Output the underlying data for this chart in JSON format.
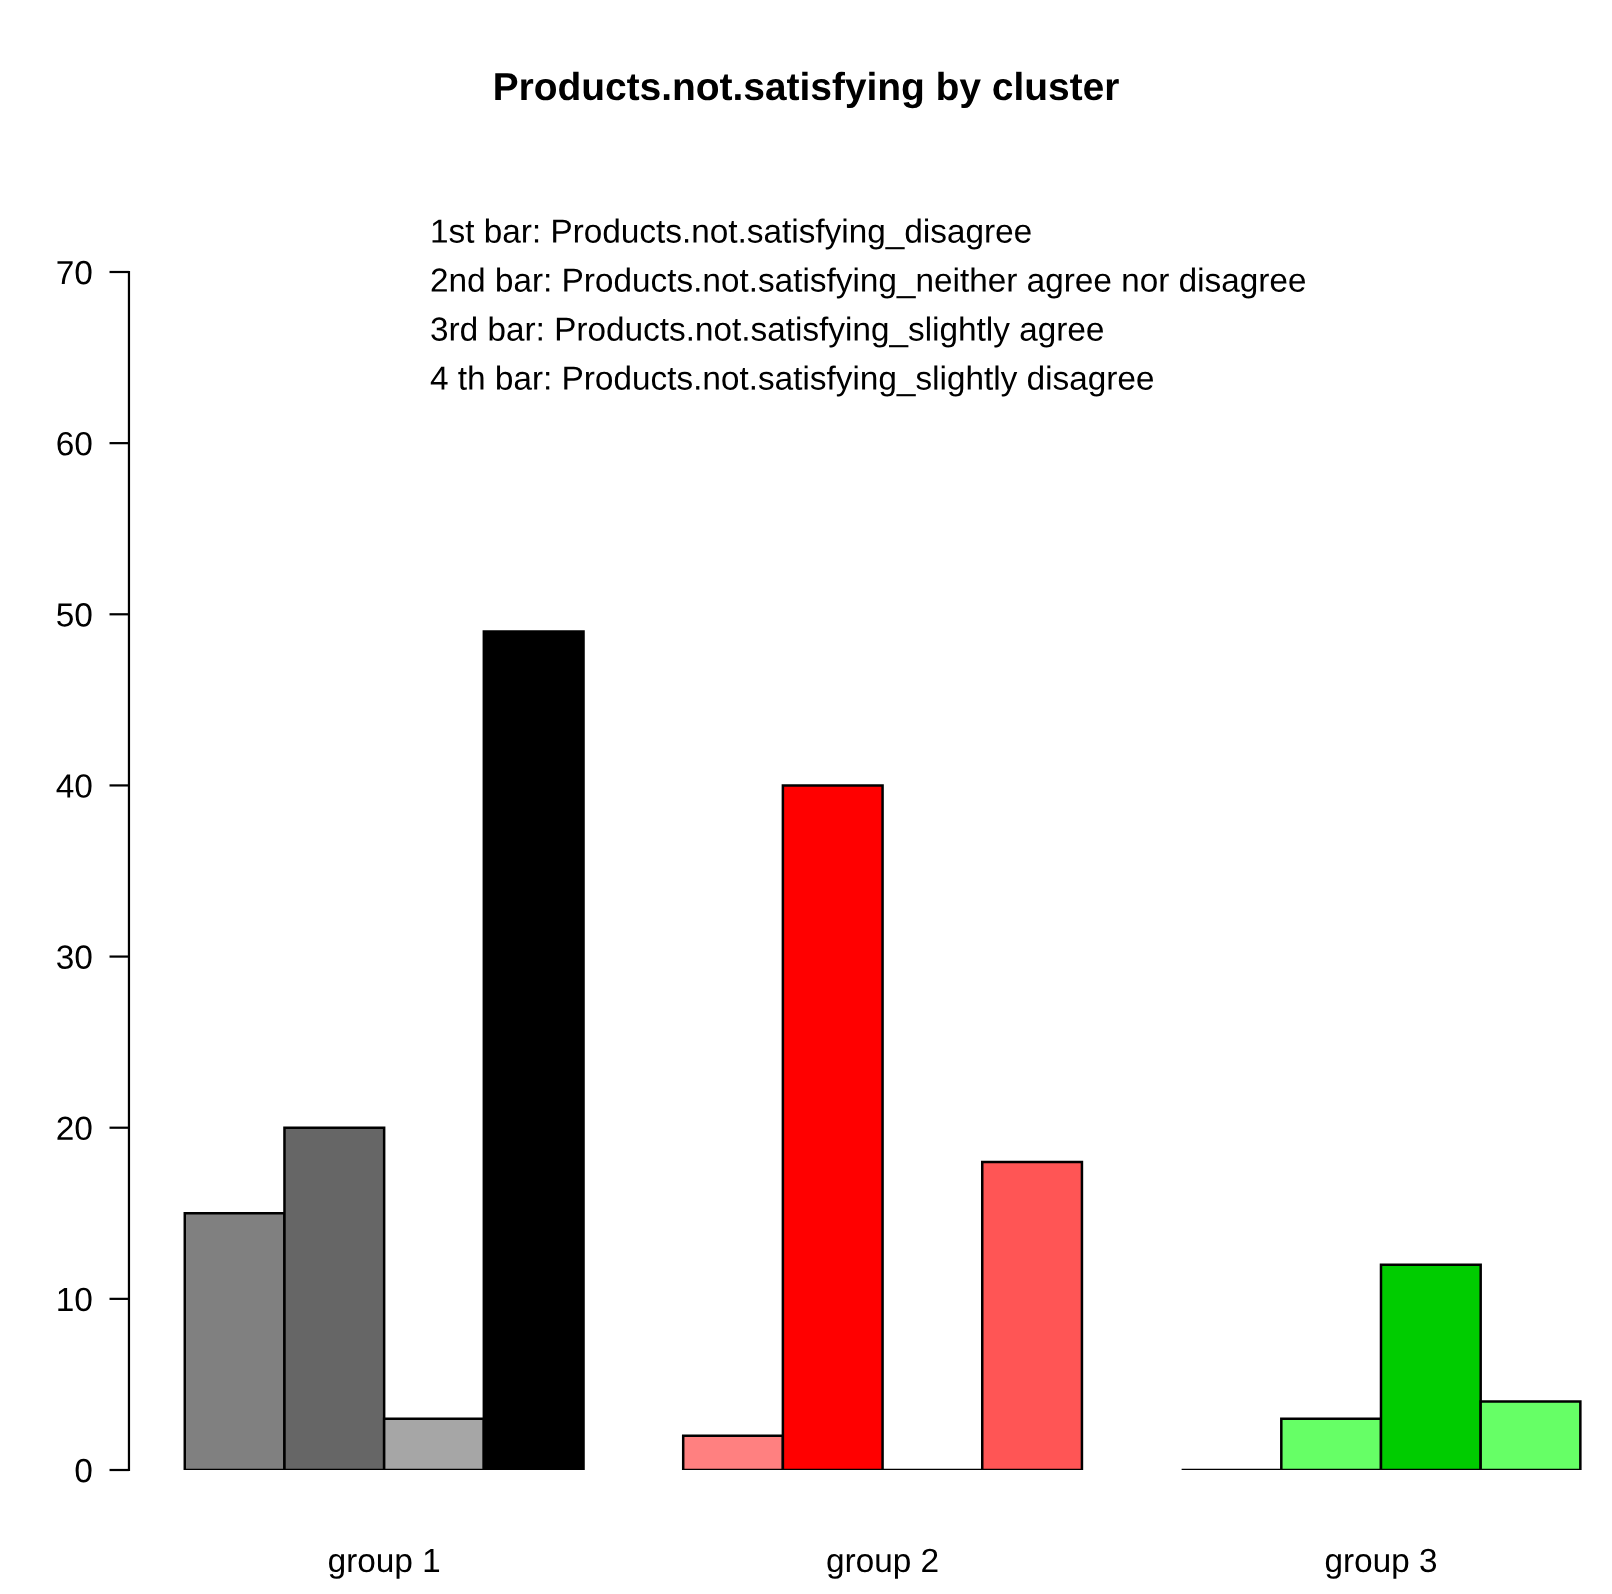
{
  "chart_data": {
    "type": "bar",
    "title": "Products.not.satisfying by cluster",
    "categories": [
      "group 1",
      "group 2",
      "group 3"
    ],
    "series": [
      {
        "colors": [
          "#808080",
          "#ff8080",
          "#000000"
        ],
        "values": [
          15,
          2,
          0
        ]
      },
      {
        "colors": [
          "#666666",
          "#ff0000",
          "#66ff66"
        ],
        "values": [
          20,
          40,
          3
        ]
      },
      {
        "colors": [
          "#a6a6a6",
          "#000000",
          "#00cc00"
        ],
        "values": [
          3,
          0,
          12
        ]
      },
      {
        "colors": [
          "#000000",
          "#ff5555",
          "#66ff66"
        ],
        "values": [
          49,
          18,
          4
        ]
      }
    ],
    "annotations": [
      "1st bar: Products.not.satisfying_disagree",
      "2nd bar: Products.not.satisfying_neither agree nor disagree",
      "3rd bar: Products.not.satisfying_slightly agree",
      "4 th bar: Products.not.satisfying_slightly disagree"
    ],
    "ylim": [
      0,
      70
    ],
    "yticks": [
      0,
      10,
      20,
      30,
      40,
      50,
      60,
      70
    ],
    "grid": false,
    "legend": false
  }
}
